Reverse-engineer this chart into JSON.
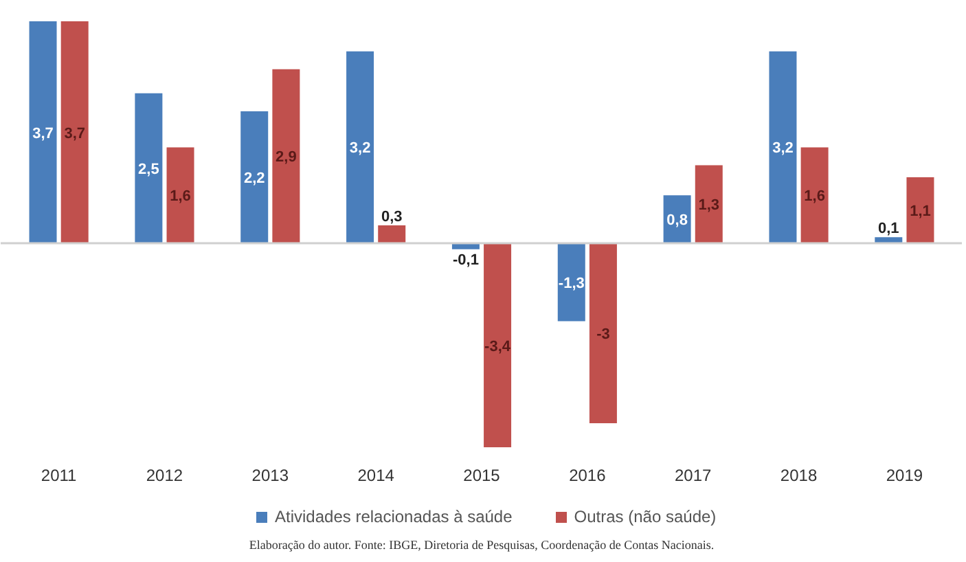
{
  "chart_data": {
    "type": "bar",
    "categories": [
      "2011",
      "2012",
      "2013",
      "2014",
      "2015",
      "2016",
      "2017",
      "2018",
      "2019"
    ],
    "series": [
      {
        "name": "Atividades relacionadas à saúde",
        "color": "#4a7ebb",
        "values": [
          3.7,
          2.5,
          2.2,
          3.2,
          -0.1,
          -1.3,
          0.8,
          3.2,
          0.1
        ],
        "value_labels": [
          "3,7",
          "2,5",
          "2,2",
          "3,2",
          "-0,1",
          "-1,3",
          "0,8",
          "3,2",
          "0,1"
        ]
      },
      {
        "name": "Outras (não saúde)",
        "color": "#c0504d",
        "values": [
          3.7,
          1.6,
          2.9,
          0.3,
          -3.4,
          -3.0,
          1.3,
          1.6,
          1.1
        ],
        "value_labels": [
          "3,7",
          "1,6",
          "2,9",
          "0,3",
          "-3,4",
          "-3",
          "1,3",
          "1,6",
          "1,1"
        ]
      }
    ],
    "legend": "bottom",
    "annotations": [
      "Elaboração do autor. Fonte: IBGE, Diretoria de Pesquisas, Coordenação de Contas Nacionais."
    ]
  }
}
